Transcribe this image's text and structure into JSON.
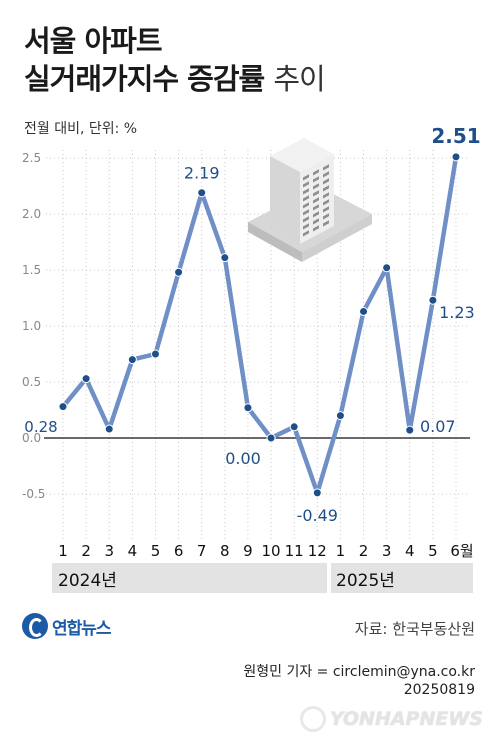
{
  "title": {
    "line1": "서울 아파트",
    "line2_bold": "실거래가지수 증감률",
    "line2_light": "추이"
  },
  "unit_label": "전월 대비, 단위: %",
  "chart_data": {
    "type": "line",
    "title": "서울 아파트 실거래가지수 증감률 추이",
    "ylabel": "전월 대비, 단위: %",
    "ylim": [
      -0.5,
      2.5
    ],
    "yticks": [
      "2.5",
      "2.0",
      "1.5",
      "1.0",
      "0.5",
      "0.0",
      "-0.5"
    ],
    "categories": [
      "1",
      "2",
      "3",
      "4",
      "5",
      "6",
      "7",
      "8",
      "9",
      "10",
      "11",
      "12",
      "1",
      "2",
      "3",
      "4",
      "5",
      "6월"
    ],
    "values": [
      0.28,
      0.53,
      0.08,
      0.7,
      0.75,
      1.48,
      2.19,
      1.61,
      0.27,
      0.0,
      0.1,
      -0.49,
      0.2,
      1.13,
      1.52,
      0.07,
      1.23,
      2.51
    ],
    "data_labels": [
      {
        "index": 0,
        "text": "0.28"
      },
      {
        "index": 6,
        "text": "2.19"
      },
      {
        "index": 9,
        "text": "0.00"
      },
      {
        "index": 11,
        "text": "-0.49"
      },
      {
        "index": 15,
        "text": "0.07"
      },
      {
        "index": 16,
        "text": "1.23"
      },
      {
        "index": 17,
        "text": "2.51"
      }
    ],
    "years": [
      "2024년",
      "2025년"
    ],
    "line_color": "#6f8fc6",
    "marker_color": "#1f4f8a",
    "grid": true
  },
  "footer": {
    "logo": "연합뉴스",
    "source": "자료: 한국부동산원",
    "credit_line1": "원형민 기자 = circlemin@yna.co.kr",
    "credit_line2": "20250819",
    "watermark": "YONHAPNEWS"
  }
}
